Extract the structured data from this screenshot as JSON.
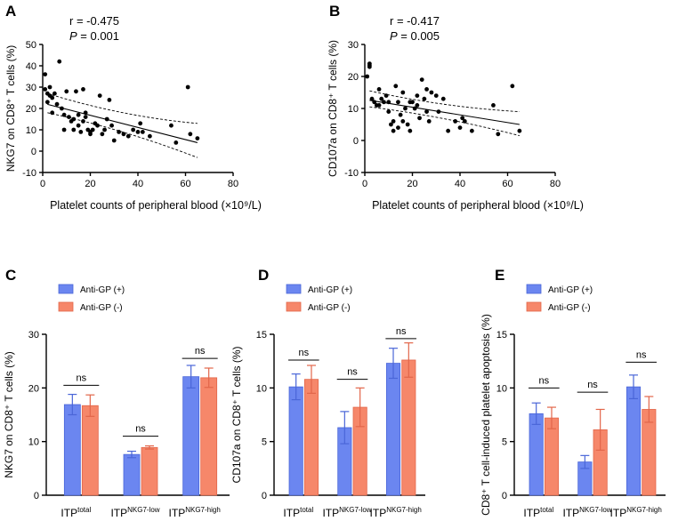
{
  "colors": {
    "gp_pos": "#6B86F0",
    "gp_pos_edge": "#4A66D8",
    "gp_neg": "#F6876A",
    "gp_neg_edge": "#E2664A",
    "point": "#000000"
  },
  "chart_data": [
    {
      "panel": "A",
      "type": "scatter",
      "stat_r": "r = -0.475",
      "stat_p_label": "P",
      "stat_p_value": " = 0.001",
      "xlabel": "Platelet counts of peripheral blood (×10⁹/L)",
      "ylabel": "NKG7 on CD8⁺ T cells (%)",
      "xlim": [
        0,
        80
      ],
      "ylim": [
        -10,
        50
      ],
      "xticks": [
        0,
        20,
        40,
        60,
        80
      ],
      "yticks": [
        -10,
        0,
        10,
        20,
        30,
        40,
        50
      ],
      "regression": {
        "slope": -0.285,
        "intercept": 22.5
      },
      "ci": {
        "x0": 2,
        "x1": 65,
        "upper": [
          27,
          13
        ],
        "lower": [
          18,
          -3
        ]
      },
      "points": [
        [
          1,
          29
        ],
        [
          2,
          27
        ],
        [
          3,
          30
        ],
        [
          4,
          25
        ],
        [
          1,
          36
        ],
        [
          2,
          23
        ],
        [
          3,
          26
        ],
        [
          5,
          27
        ],
        [
          4,
          18
        ],
        [
          6,
          22
        ],
        [
          7,
          42
        ],
        [
          8,
          20
        ],
        [
          9,
          17
        ],
        [
          9,
          10
        ],
        [
          10,
          28
        ],
        [
          11,
          16
        ],
        [
          12,
          14
        ],
        [
          13,
          10
        ],
        [
          13,
          15
        ],
        [
          14,
          28
        ],
        [
          15,
          17
        ],
        [
          15,
          12
        ],
        [
          16,
          9
        ],
        [
          17,
          14
        ],
        [
          17,
          29
        ],
        [
          18,
          16
        ],
        [
          18,
          18
        ],
        [
          19,
          10
        ],
        [
          20,
          9
        ],
        [
          20,
          8
        ],
        [
          21,
          10
        ],
        [
          22,
          13
        ],
        [
          23,
          12
        ],
        [
          24,
          26
        ],
        [
          25,
          8
        ],
        [
          26,
          10
        ],
        [
          27,
          15
        ],
        [
          28,
          24
        ],
        [
          29,
          12
        ],
        [
          30,
          5
        ],
        [
          32,
          9
        ],
        [
          34,
          8
        ],
        [
          36,
          7
        ],
        [
          38,
          10
        ],
        [
          40,
          9
        ],
        [
          41,
          13
        ],
        [
          42,
          9
        ],
        [
          45,
          7
        ],
        [
          54,
          12
        ],
        [
          56,
          4
        ],
        [
          61,
          30
        ],
        [
          62,
          8
        ],
        [
          65,
          6
        ]
      ]
    },
    {
      "panel": "B",
      "type": "scatter",
      "stat_r": "r = -0.417",
      "stat_p_label": "P",
      "stat_p_value": " = 0.005",
      "xlabel": "Platelet counts of peripheral blood (×10⁹/L)",
      "ylabel": "CD107a on CD8⁺ T cells (%)",
      "xlim": [
        0,
        80
      ],
      "ylim": [
        -10,
        30
      ],
      "xticks": [
        0,
        20,
        40,
        60,
        80
      ],
      "yticks": [
        -10,
        0,
        10,
        20,
        30
      ],
      "regression": {
        "slope": -0.12,
        "intercept": 12.8
      },
      "ci": {
        "x0": 2,
        "x1": 65,
        "upper": [
          15.5,
          9
        ],
        "lower": [
          10.5,
          1.5
        ]
      },
      "points": [
        [
          1,
          20
        ],
        [
          2,
          24
        ],
        [
          2,
          23
        ],
        [
          2,
          23.5
        ],
        [
          3,
          13
        ],
        [
          4,
          12
        ],
        [
          5,
          11
        ],
        [
          6,
          16
        ],
        [
          6,
          11
        ],
        [
          7,
          13
        ],
        [
          8,
          12
        ],
        [
          9,
          14
        ],
        [
          10,
          12
        ],
        [
          10,
          9
        ],
        [
          11,
          5
        ],
        [
          12,
          3
        ],
        [
          12,
          6
        ],
        [
          13,
          17
        ],
        [
          14,
          4
        ],
        [
          14,
          12
        ],
        [
          15,
          8
        ],
        [
          16,
          15
        ],
        [
          16,
          6
        ],
        [
          17,
          10
        ],
        [
          18,
          5
        ],
        [
          19,
          12
        ],
        [
          19,
          3
        ],
        [
          20,
          12
        ],
        [
          21,
          10
        ],
        [
          22,
          11
        ],
        [
          22,
          14
        ],
        [
          23,
          7
        ],
        [
          24,
          19
        ],
        [
          25,
          13
        ],
        [
          26,
          16
        ],
        [
          26,
          9
        ],
        [
          27,
          6
        ],
        [
          28,
          15
        ],
        [
          30,
          14
        ],
        [
          31,
          9
        ],
        [
          33,
          13
        ],
        [
          35,
          3
        ],
        [
          38,
          6
        ],
        [
          40,
          4
        ],
        [
          41,
          7
        ],
        [
          42,
          6
        ],
        [
          45,
          3
        ],
        [
          54,
          11
        ],
        [
          56,
          2
        ],
        [
          62,
          17
        ],
        [
          65,
          3
        ]
      ]
    },
    {
      "panel": "C",
      "type": "bar",
      "ylabel": "NKG7 on CD8⁺ T cells (%)",
      "ylim": [
        0,
        30
      ],
      "yticks": [
        0,
        10,
        20,
        30
      ],
      "categories": [
        {
          "base": "ITP",
          "sup": "total"
        },
        {
          "base": "ITP",
          "sup": "NKG7-low"
        },
        {
          "base": "ITP",
          "sup": "NKG7-high"
        }
      ],
      "series": [
        {
          "name": "Anti-GP (+)",
          "values": [
            16.9,
            7.6,
            22.1
          ],
          "errors": [
            1.9,
            0.6,
            2.1
          ]
        },
        {
          "name": "Anti-GP (-)",
          "values": [
            16.7,
            8.9,
            21.9
          ],
          "errors": [
            2.0,
            0.3,
            1.8
          ]
        }
      ],
      "annotations": [
        "ns",
        "ns",
        "ns"
      ],
      "ns_levels": [
        20.5,
        11.0,
        25.5
      ]
    },
    {
      "panel": "D",
      "type": "bar",
      "ylabel": "CD107a on CD8⁺ T cells (%)",
      "ylim": [
        0,
        15
      ],
      "yticks": [
        0,
        5,
        10,
        15
      ],
      "categories": [
        {
          "base": "ITP",
          "sup": "total"
        },
        {
          "base": "ITP",
          "sup": "NKG7-low"
        },
        {
          "base": "ITP",
          "sup": "NKG7-high"
        }
      ],
      "series": [
        {
          "name": "Anti-GP (+)",
          "values": [
            10.1,
            6.3,
            12.3
          ],
          "errors": [
            1.2,
            1.5,
            1.4
          ]
        },
        {
          "name": "Anti-GP (-)",
          "values": [
            10.8,
            8.2,
            12.6
          ],
          "errors": [
            1.3,
            1.8,
            1.6
          ]
        }
      ],
      "annotations": [
        "ns",
        "ns",
        "ns"
      ],
      "ns_levels": [
        12.6,
        10.8,
        14.6
      ]
    },
    {
      "panel": "E",
      "type": "bar",
      "ylabel": "CD8⁺ T cell-induced platelet apoptosis (%)",
      "ylim": [
        0,
        15
      ],
      "yticks": [
        0,
        5,
        10,
        15
      ],
      "categories": [
        {
          "base": "ITP",
          "sup": "total"
        },
        {
          "base": "ITP",
          "sup": "NKG7-low"
        },
        {
          "base": "ITP",
          "sup": "NKG7-high"
        }
      ],
      "series": [
        {
          "name": "Anti-GP (+)",
          "values": [
            7.6,
            3.1,
            10.1
          ],
          "errors": [
            1.0,
            0.6,
            1.1
          ]
        },
        {
          "name": "Anti-GP (-)",
          "values": [
            7.2,
            6.1,
            8.0
          ],
          "errors": [
            1.0,
            1.9,
            1.2
          ]
        }
      ],
      "annotations": [
        "ns",
        "ns",
        "ns"
      ],
      "ns_levels": [
        10.0,
        9.6,
        12.4
      ]
    }
  ]
}
